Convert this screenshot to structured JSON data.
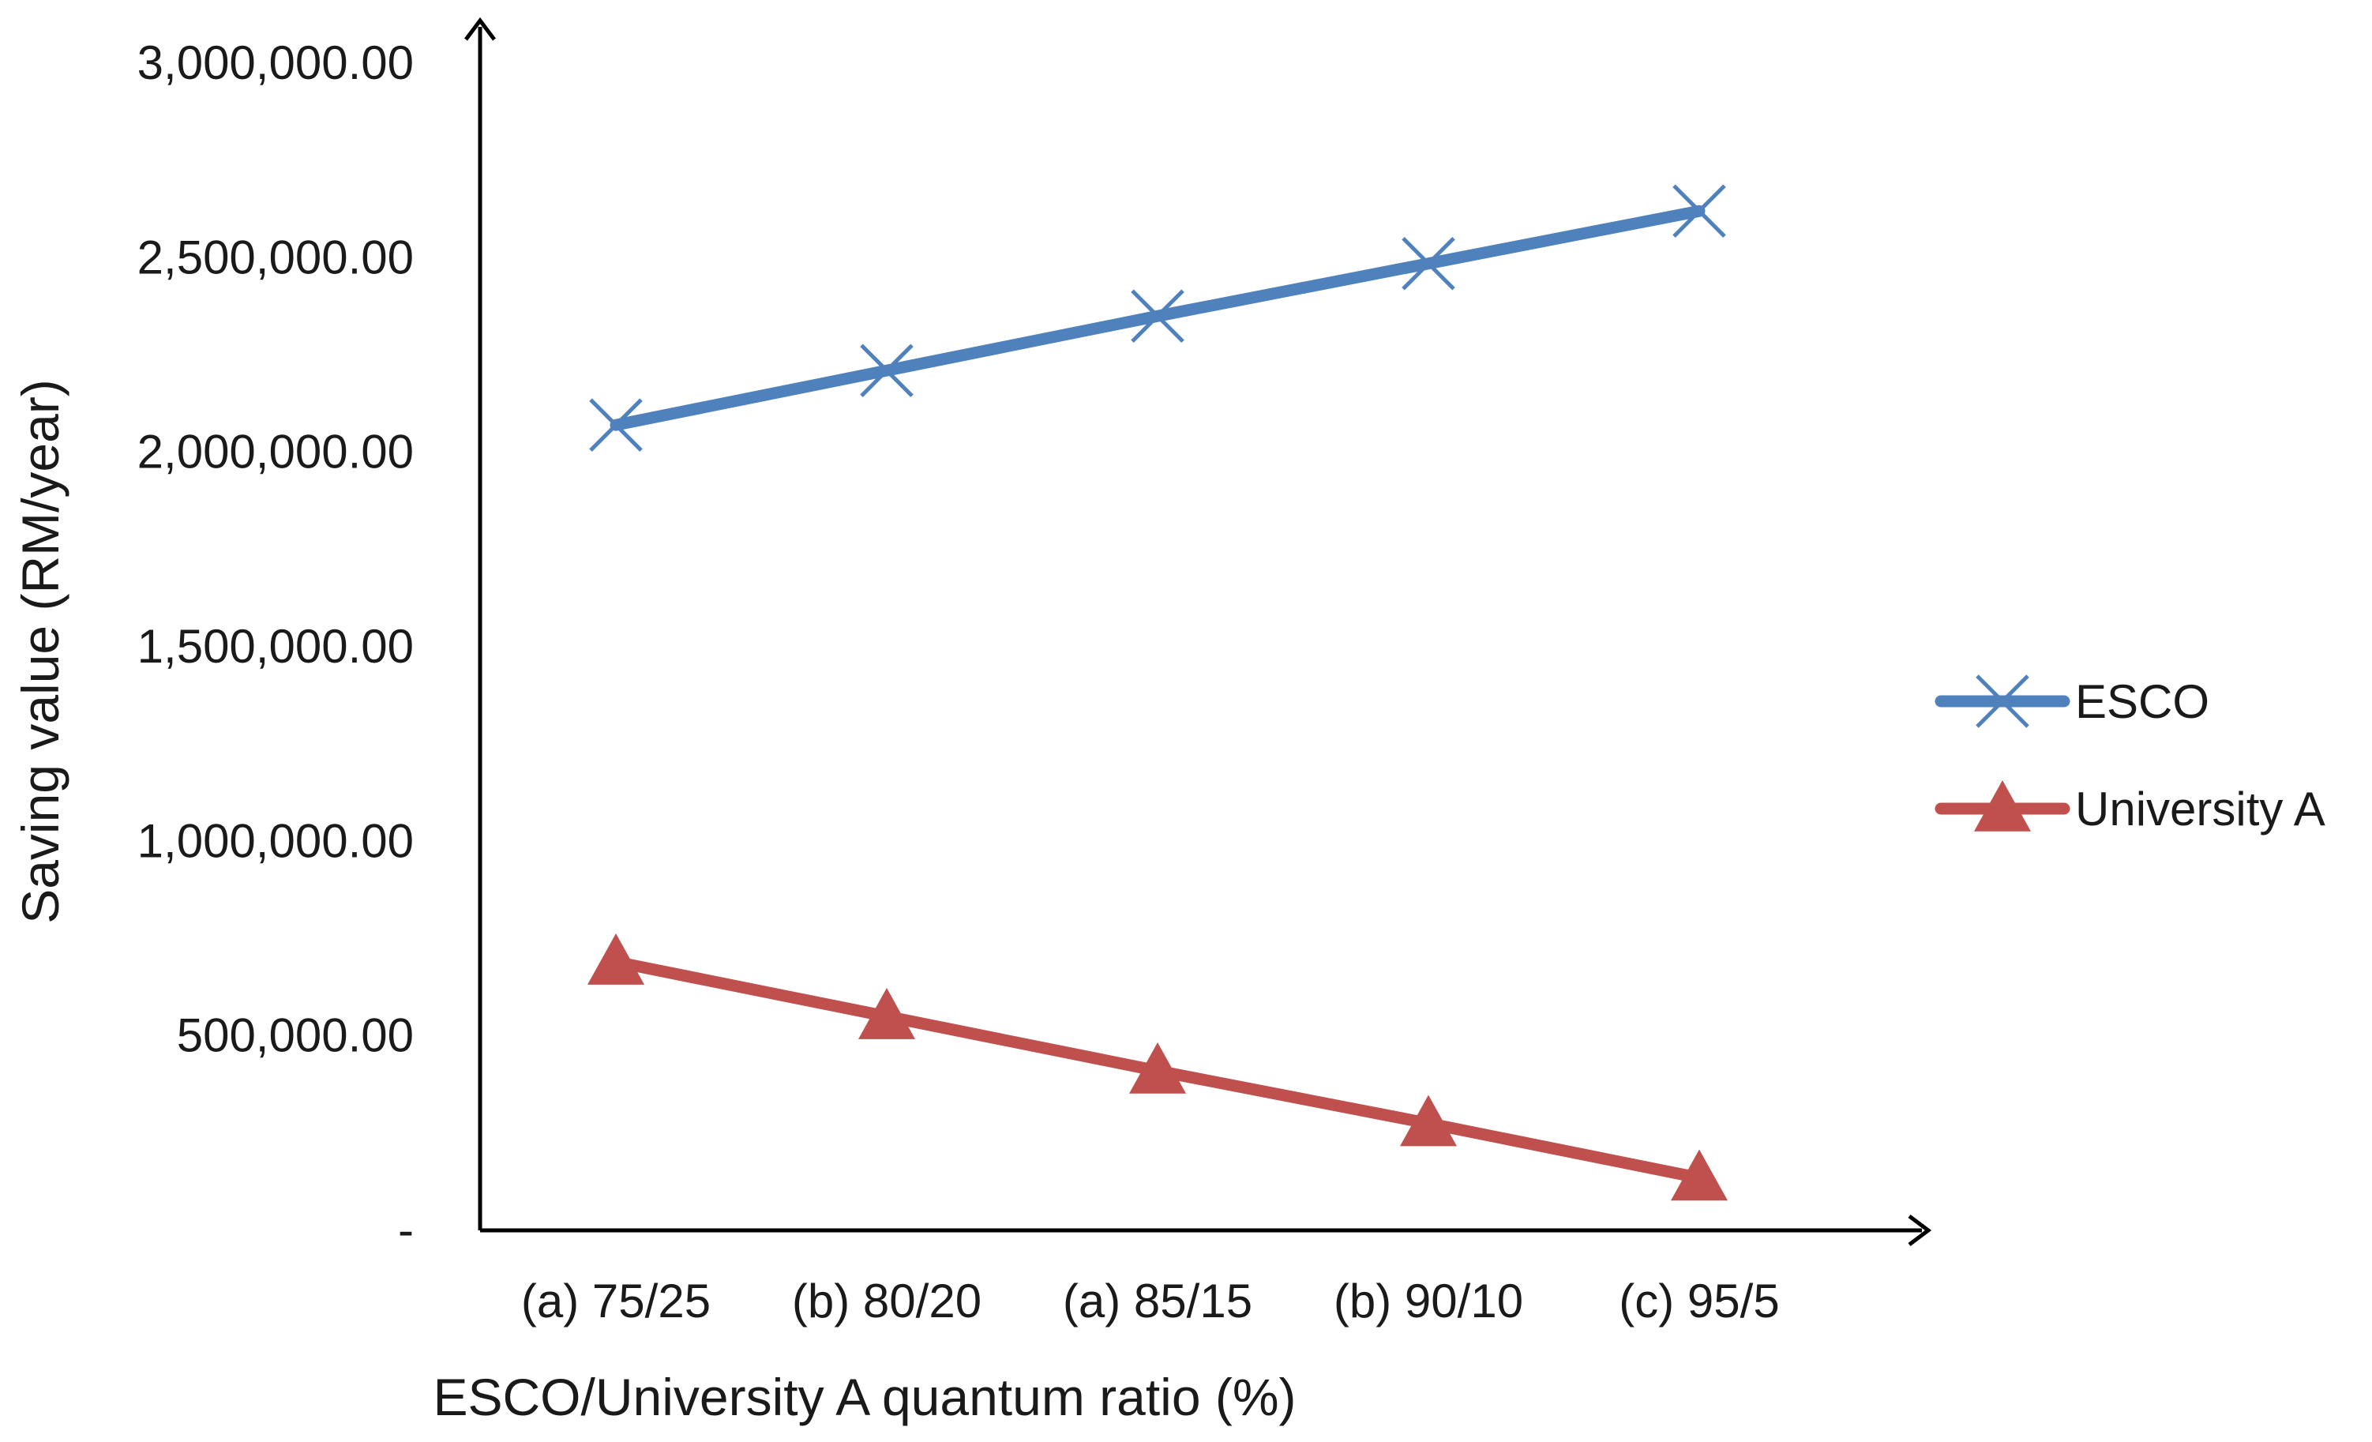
{
  "chart_data": {
    "type": "line",
    "title": "",
    "xlabel": "ESCO/University A quantum ratio (%)",
    "ylabel": "Saving value (RM/year)",
    "categories": [
      "(a) 75/25",
      "(b) 80/20",
      "(a) 85/15",
      "(b) 90/10",
      "(c) 95/5"
    ],
    "ylim": [
      0,
      3000000
    ],
    "yticks": [
      0,
      500000,
      1000000,
      1500000,
      2000000,
      2500000,
      3000000
    ],
    "ytick_labels": [
      "-",
      "500,000.00",
      "1,000,000.00",
      "1,500,000.00",
      "2,000,000.00",
      "2,500,000.00",
      "3,000,000.00"
    ],
    "grid": false,
    "legend_position": "right",
    "series": [
      {
        "name": "ESCO",
        "color": "#4f81bd",
        "marker": "x",
        "values": [
          2070000,
          2210000,
          2350000,
          2485000,
          2620000
        ]
      },
      {
        "name": "University A",
        "color": "#c0504d",
        "marker": "triangle",
        "values": [
          690000,
          550000,
          410000,
          275000,
          135000
        ]
      }
    ]
  }
}
